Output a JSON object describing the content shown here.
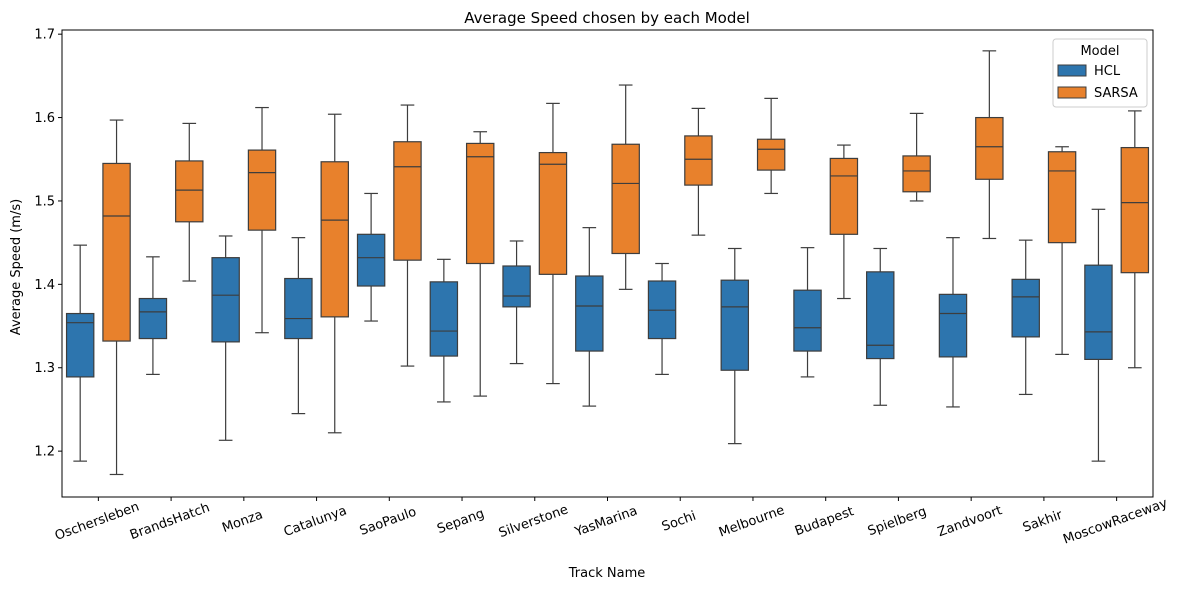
{
  "chart_data": {
    "type": "box",
    "title": "Average Speed chosen by each Model",
    "xlabel": "Track Name",
    "ylabel": "Average Speed (m/s)",
    "ylim": [
      1.145,
      1.705
    ],
    "yticks": [
      1.2,
      1.3,
      1.4,
      1.5,
      1.6,
      1.7
    ],
    "ytick_labels": [
      "1.2",
      "1.3",
      "1.4",
      "1.5",
      "1.6",
      "1.7"
    ],
    "grid": false,
    "legend": {
      "title": "Model",
      "position": "top-right"
    },
    "categories": [
      "Oschersleben",
      "BrandsHatch",
      "Monza",
      "Catalunya",
      "SaoPaulo",
      "Sepang",
      "Silverstone",
      "YasMarina",
      "Sochi",
      "Melbourne",
      "Budapest",
      "Spielberg",
      "Zandvoort",
      "Sakhir",
      "MoscowRaceway"
    ],
    "series": [
      {
        "name": "HCL",
        "color": "#2d75ae",
        "boxes": [
          {
            "whislo": 1.188,
            "q1": 1.289,
            "med": 1.354,
            "q3": 1.365,
            "whishi": 1.447
          },
          {
            "whislo": 1.292,
            "q1": 1.335,
            "med": 1.367,
            "q3": 1.383,
            "whishi": 1.433
          },
          {
            "whislo": 1.213,
            "q1": 1.331,
            "med": 1.387,
            "q3": 1.432,
            "whishi": 1.458
          },
          {
            "whislo": 1.245,
            "q1": 1.335,
            "med": 1.359,
            "q3": 1.407,
            "whishi": 1.456
          },
          {
            "whislo": 1.356,
            "q1": 1.398,
            "med": 1.432,
            "q3": 1.46,
            "whishi": 1.509
          },
          {
            "whislo": 1.259,
            "q1": 1.314,
            "med": 1.344,
            "q3": 1.403,
            "whishi": 1.43
          },
          {
            "whislo": 1.305,
            "q1": 1.373,
            "med": 1.386,
            "q3": 1.422,
            "whishi": 1.452
          },
          {
            "whislo": 1.254,
            "q1": 1.32,
            "med": 1.374,
            "q3": 1.41,
            "whishi": 1.468
          },
          {
            "whislo": 1.292,
            "q1": 1.335,
            "med": 1.369,
            "q3": 1.404,
            "whishi": 1.425
          },
          {
            "whislo": 1.209,
            "q1": 1.297,
            "med": 1.373,
            "q3": 1.405,
            "whishi": 1.443
          },
          {
            "whislo": 1.289,
            "q1": 1.32,
            "med": 1.348,
            "q3": 1.393,
            "whishi": 1.444
          },
          {
            "whislo": 1.255,
            "q1": 1.311,
            "med": 1.327,
            "q3": 1.415,
            "whishi": 1.443
          },
          {
            "whislo": 1.253,
            "q1": 1.313,
            "med": 1.365,
            "q3": 1.388,
            "whishi": 1.456
          },
          {
            "whislo": 1.268,
            "q1": 1.337,
            "med": 1.385,
            "q3": 1.406,
            "whishi": 1.453
          },
          {
            "whislo": 1.188,
            "q1": 1.31,
            "med": 1.343,
            "q3": 1.423,
            "whishi": 1.49
          }
        ]
      },
      {
        "name": "SARSA",
        "color": "#e8812c",
        "boxes": [
          {
            "whislo": 1.172,
            "q1": 1.332,
            "med": 1.482,
            "q3": 1.545,
            "whishi": 1.597
          },
          {
            "whislo": 1.404,
            "q1": 1.475,
            "med": 1.513,
            "q3": 1.548,
            "whishi": 1.593
          },
          {
            "whislo": 1.342,
            "q1": 1.465,
            "med": 1.534,
            "q3": 1.561,
            "whishi": 1.612
          },
          {
            "whislo": 1.222,
            "q1": 1.361,
            "med": 1.477,
            "q3": 1.547,
            "whishi": 1.604
          },
          {
            "whislo": 1.302,
            "q1": 1.429,
            "med": 1.541,
            "q3": 1.571,
            "whishi": 1.615
          },
          {
            "whislo": 1.266,
            "q1": 1.425,
            "med": 1.553,
            "q3": 1.569,
            "whishi": 1.583
          },
          {
            "whislo": 1.281,
            "q1": 1.412,
            "med": 1.544,
            "q3": 1.558,
            "whishi": 1.617
          },
          {
            "whislo": 1.394,
            "q1": 1.437,
            "med": 1.521,
            "q3": 1.568,
            "whishi": 1.639
          },
          {
            "whislo": 1.459,
            "q1": 1.519,
            "med": 1.55,
            "q3": 1.578,
            "whishi": 1.611
          },
          {
            "whislo": 1.509,
            "q1": 1.537,
            "med": 1.562,
            "q3": 1.574,
            "whishi": 1.623
          },
          {
            "whislo": 1.383,
            "q1": 1.46,
            "med": 1.53,
            "q3": 1.551,
            "whishi": 1.567
          },
          {
            "whislo": 1.5,
            "q1": 1.511,
            "med": 1.536,
            "q3": 1.554,
            "whishi": 1.605
          },
          {
            "whislo": 1.455,
            "q1": 1.526,
            "med": 1.565,
            "q3": 1.6,
            "whishi": 1.68
          },
          {
            "whislo": 1.316,
            "q1": 1.45,
            "med": 1.536,
            "q3": 1.559,
            "whishi": 1.565
          },
          {
            "whislo": 1.3,
            "q1": 1.414,
            "med": 1.498,
            "q3": 1.564,
            "whishi": 1.608
          }
        ]
      }
    ]
  }
}
